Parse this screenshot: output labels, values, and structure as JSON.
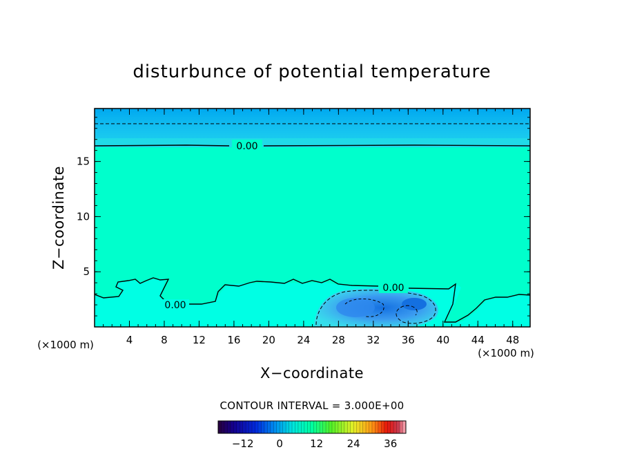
{
  "chart_data": {
    "type": "heatmap",
    "title": "disturbunce of potential temperature",
    "xlabel": "X−coordinate",
    "ylabel": "Z−coordinate",
    "x_unit": "(×1000 m)",
    "x_unit_right": "(×1000 m)",
    "xlim": [
      0,
      50
    ],
    "ylim": [
      0,
      19.8
    ],
    "x_ticks": [
      4,
      8,
      12,
      16,
      20,
      24,
      28,
      32,
      36,
      40,
      44,
      48
    ],
    "y_ticks": [
      5,
      10,
      15
    ],
    "contour_labels": [
      "0.00",
      "0.00",
      "0.00"
    ],
    "contour_interval_text": "CONTOUR INTERVAL = 3.000E+00",
    "colorbar": {
      "min": -20,
      "max": 41,
      "ticks": [
        -12,
        0,
        12,
        24,
        36
      ],
      "tick_labels": [
        "−12",
        "0",
        "12",
        "24",
        "36"
      ]
    },
    "colors": {
      "background_field": "#00ffcc",
      "upper_layer": "#00b4f0",
      "upper_band": "#1ec6f0",
      "lower_layer": "#00ffe0",
      "cold_pool": "#28a0f0",
      "cold_core": "#1478e6"
    }
  }
}
